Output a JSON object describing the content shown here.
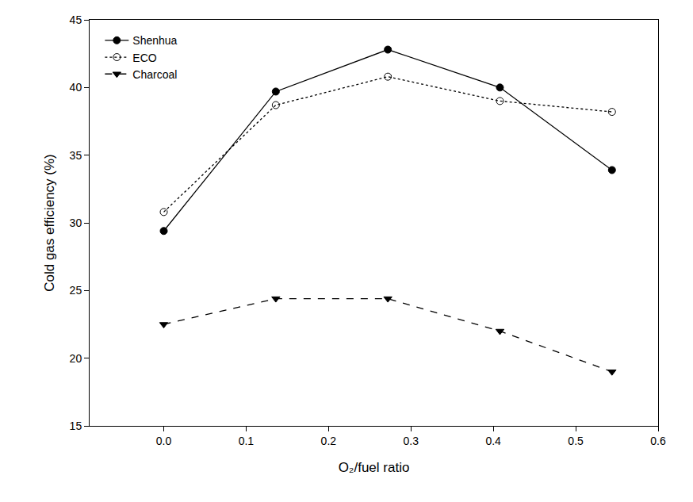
{
  "chart_data": {
    "type": "line",
    "x_label": "O₂/fuel ratio",
    "y_label": "Cold gas efficiency (%)",
    "x": [
      0.0,
      0.136,
      0.272,
      0.408,
      0.544
    ],
    "series": [
      {
        "name": "Shenhua",
        "color": "#000000",
        "marker": "circle",
        "line_style": "solid",
        "values": [
          29.4,
          39.7,
          42.8,
          40.0,
          33.9
        ]
      },
      {
        "name": "ECO",
        "color": "#000000",
        "marker": "circle-open",
        "line_style": "dot",
        "values": [
          30.8,
          38.7,
          40.8,
          39.0,
          38.2
        ]
      },
      {
        "name": "Charcoal",
        "color": "#000000",
        "marker": "triangle-down",
        "line_style": "dash",
        "values": [
          22.5,
          24.4,
          24.4,
          22.0,
          19.0
        ]
      }
    ],
    "xlim": [
      -0.09,
      0.6
    ],
    "xticks": [
      {
        "value": 0,
        "label": "0.0"
      },
      0.1,
      0.2,
      0.3,
      0.4,
      0.5,
      0.6
    ],
    "ylim": [
      15,
      45
    ],
    "yticks": [
      15,
      20,
      25,
      30,
      35,
      40,
      45
    ],
    "grid": false,
    "legend": "top-left"
  }
}
